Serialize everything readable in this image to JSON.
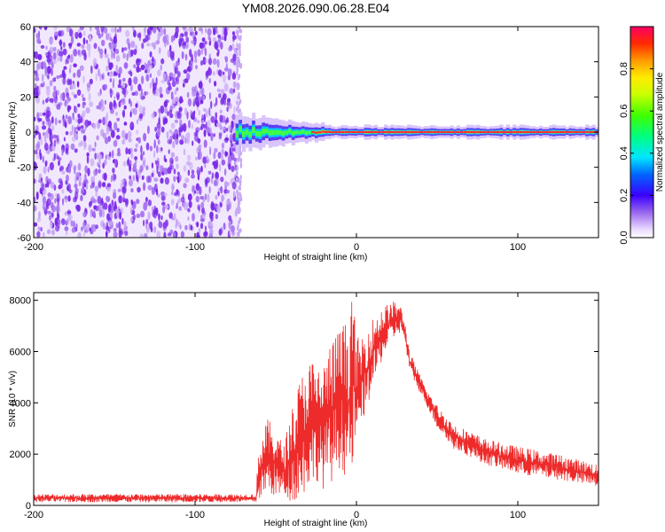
{
  "title": "YM08.2026.090.06.28.E04",
  "colors": {
    "snr_line": "#ee2b2b",
    "noise_purple": "#7a28e8",
    "noise_light": "#c8a8f4"
  },
  "chart_data": [
    {
      "type": "heatmap",
      "name": "spectrogram",
      "xlabel": "Height of straight line (km)",
      "ylabel": "Frequency (Hz)",
      "xlim": [
        -200,
        150
      ],
      "ylim": [
        -60,
        60
      ],
      "x_ticks": [
        -200,
        -100,
        0,
        100
      ],
      "x_tick_labels": [
        "-200",
        "-100",
        "0",
        "100"
      ],
      "y_ticks": [
        -60,
        -40,
        -20,
        0,
        20,
        40,
        60
      ],
      "y_tick_labels": [
        "-60",
        "-40",
        "-20",
        "0",
        "20",
        "40",
        "60"
      ],
      "noise_region_x": [
        -200,
        -73
      ],
      "signal_start_x": -75,
      "signal_frequency_hz": 0,
      "colorbar": {
        "label": "Normalized spectral amplitude",
        "range": [
          0.0,
          1.0
        ],
        "ticks": [
          0.0,
          0.2,
          0.4,
          0.6,
          0.8
        ],
        "tick_labels": [
          "0.0",
          "0.2",
          "0.4",
          "0.6",
          "0.8"
        ]
      }
    },
    {
      "type": "line",
      "name": "snr",
      "xlabel": "Height of straight line (km)",
      "ylabel": "SNR (10 * v/v)",
      "xlim": [
        -200,
        150
      ],
      "ylim": [
        0,
        8300
      ],
      "x_ticks": [
        -200,
        -100,
        0,
        100
      ],
      "x_tick_labels": [
        "-200",
        "-100",
        "0",
        "100"
      ],
      "y_ticks": [
        0,
        2000,
        4000,
        6000,
        8000
      ],
      "y_tick_labels": [
        "0",
        "2000",
        "4000",
        "6000",
        "8000"
      ],
      "envelope": {
        "x": [
          -200,
          -62,
          -61,
          -55,
          -45,
          -40,
          -35,
          -28,
          -25,
          -20,
          -15,
          -10,
          -5,
          -2,
          0,
          5,
          10,
          15,
          20,
          25,
          28,
          30,
          33,
          40,
          45,
          50,
          60,
          80,
          100,
          125,
          150
        ],
        "low": [
          120,
          120,
          200,
          400,
          250,
          150,
          200,
          800,
          1000,
          600,
          900,
          1500,
          800,
          1400,
          2200,
          3500,
          4500,
          5500,
          6200,
          6600,
          6800,
          6300,
          5200,
          4300,
          3700,
          3000,
          2200,
          1600,
          1200,
          1000,
          700
        ],
        "high": [
          450,
          450,
          2200,
          3400,
          2400,
          3800,
          5000,
          5800,
          5400,
          5700,
          6500,
          7000,
          7300,
          8300,
          6500,
          6800,
          7300,
          7700,
          7900,
          8000,
          7700,
          7200,
          6000,
          5000,
          4400,
          3900,
          3200,
          2600,
          2300,
          2000,
          1600
        ]
      }
    }
  ]
}
